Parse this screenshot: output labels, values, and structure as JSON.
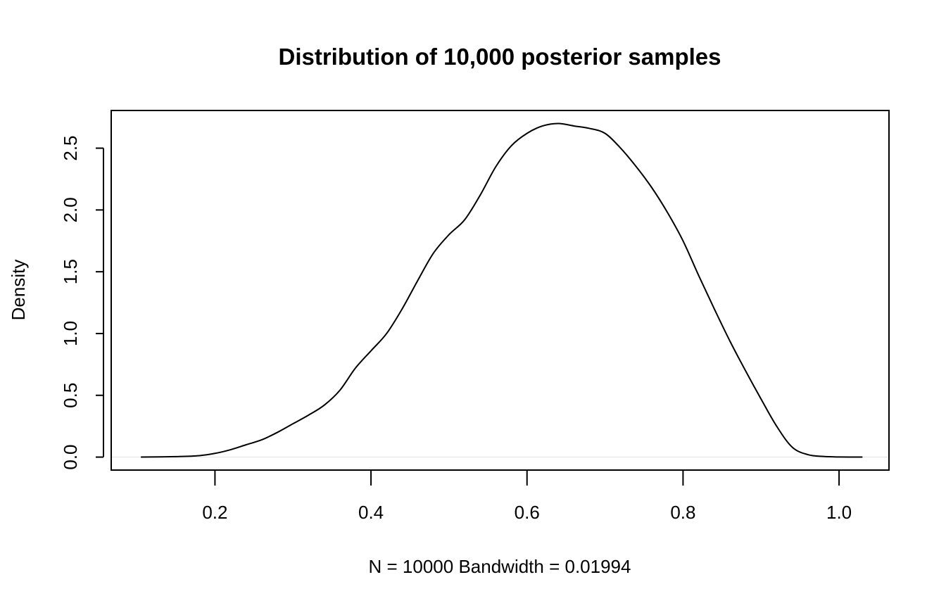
{
  "chart_data": {
    "type": "line",
    "title": "Distribution of 10,000 posterior samples",
    "xlabel": "N = 10000   Bandwidth = 0.01994",
    "ylabel": "Density",
    "xlim": [
      0.067,
      1.064
    ],
    "ylim": [
      -0.105,
      2.805
    ],
    "x_ticks": [
      0.2,
      0.4,
      0.6,
      0.8,
      1.0
    ],
    "x_tick_labels": [
      "0.2",
      "0.4",
      "0.6",
      "0.8",
      "1.0"
    ],
    "y_ticks": [
      0.0,
      0.5,
      1.0,
      1.5,
      2.0,
      2.5
    ],
    "y_tick_labels": [
      "0.0",
      "0.5",
      "1.0",
      "1.5",
      "2.0",
      "2.5"
    ],
    "grid": false,
    "baseline": 0.0,
    "series": [
      {
        "line_color": "#000000",
        "x": [
          0.105,
          0.15,
          0.18,
          0.2,
          0.22,
          0.24,
          0.26,
          0.28,
          0.3,
          0.32,
          0.34,
          0.36,
          0.38,
          0.4,
          0.42,
          0.44,
          0.46,
          0.48,
          0.5,
          0.52,
          0.54,
          0.56,
          0.58,
          0.6,
          0.62,
          0.64,
          0.66,
          0.68,
          0.7,
          0.72,
          0.74,
          0.76,
          0.78,
          0.8,
          0.82,
          0.84,
          0.86,
          0.88,
          0.9,
          0.92,
          0.94,
          0.96,
          0.98,
          1.0,
          1.03
        ],
        "y": [
          0.0,
          0.004,
          0.012,
          0.03,
          0.06,
          0.1,
          0.14,
          0.2,
          0.27,
          0.34,
          0.42,
          0.54,
          0.72,
          0.86,
          1.0,
          1.2,
          1.43,
          1.65,
          1.8,
          1.92,
          2.12,
          2.35,
          2.52,
          2.62,
          2.68,
          2.7,
          2.68,
          2.66,
          2.62,
          2.5,
          2.35,
          2.18,
          1.98,
          1.75,
          1.47,
          1.2,
          0.94,
          0.7,
          0.47,
          0.25,
          0.08,
          0.02,
          0.005,
          0.001,
          0.0
        ]
      }
    ]
  }
}
